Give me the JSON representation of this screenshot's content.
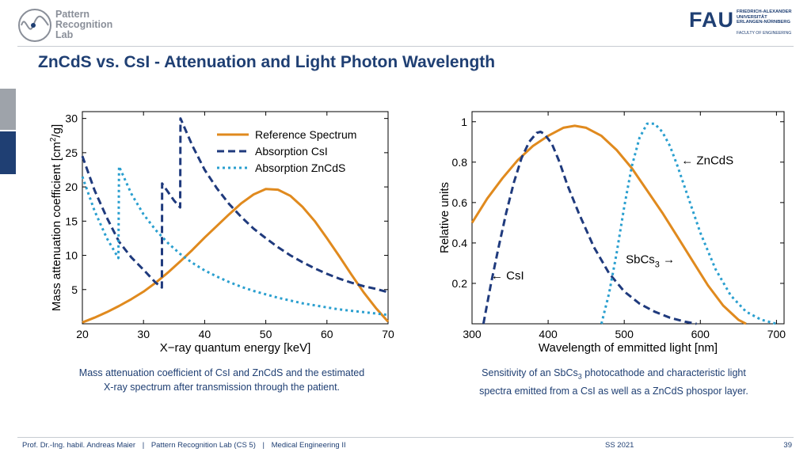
{
  "header": {
    "lab_name_line1": "Pattern",
    "lab_name_line2": "Recognition",
    "lab_name_line3": "Lab",
    "university_mark": "FAU",
    "university_line1": "FRIEDRICH-ALEXANDER",
    "university_line2": "UNIVERSITÄT",
    "university_line3": "ERLANGEN-NÜRNBERG",
    "faculty": "FACULTY OF ENGINEERING"
  },
  "slide": {
    "title": "ZnCdS vs. CsI - Attenuation and Light Photon Wavelength"
  },
  "captions": {
    "left_line1": "Mass attenuation coefficient of CsI and ZnCdS and the estimated",
    "left_line2": "X-ray spectrum after transmission through the patient.",
    "right_line1_a": "Sensitivity of an SbCs",
    "right_line1_sub": "3",
    "right_line1_b": " photocathode and characteristic light",
    "right_line2": "spectra emitted from a CsI as well as a ZnCdS phospor layer."
  },
  "footer": {
    "author": "Prof. Dr.-Ing. habil. Andreas Maier",
    "sep1": "|",
    "lab": "Pattern Recognition Lab (CS 5)",
    "sep2": "|",
    "course": "Medical Engineering II",
    "term": "SS 2021",
    "page": "39"
  },
  "colors": {
    "orange": "#e08a1e",
    "dark_blue": "#1f3a7d",
    "light_blue": "#2a9fcf",
    "brand": "#1f3f73"
  },
  "chart_data": [
    {
      "type": "line",
      "xlabel": "X−ray quantum energy [keV]",
      "ylabel_a": "Mass attenuation coefficient [cm",
      "ylabel_sup": "2",
      "ylabel_b": "/g]",
      "xlim": [
        20,
        70
      ],
      "ylim": [
        0,
        31
      ],
      "xticks": [
        20,
        30,
        40,
        50,
        60,
        70
      ],
      "yticks": [
        5,
        10,
        15,
        20,
        25,
        30
      ],
      "grid": false,
      "legend_position": "top-right",
      "series": [
        {
          "name": "Reference Spectrum",
          "style": "solid",
          "color": "#e08a1e",
          "x": [
            20,
            22,
            24,
            26,
            28,
            30,
            32,
            34,
            36,
            38,
            40,
            42,
            44,
            46,
            48,
            50,
            52,
            54,
            56,
            58,
            60,
            62,
            64,
            66,
            68,
            70
          ],
          "y": [
            0.2,
            0.9,
            1.7,
            2.6,
            3.6,
            4.7,
            6.0,
            7.5,
            9.1,
            10.8,
            12.6,
            14.3,
            16.0,
            17.6,
            18.9,
            19.7,
            19.6,
            18.7,
            17.1,
            15.0,
            12.5,
            9.9,
            7.2,
            4.6,
            2.3,
            0.3
          ]
        },
        {
          "name": "Absorption CsI",
          "style": "dashed",
          "color": "#1f3a7d",
          "x": [
            20,
            22,
            24,
            26,
            28,
            30,
            32,
            33,
            33.05,
            35,
            36,
            36.05,
            38,
            40,
            42,
            44,
            46,
            48,
            50,
            52,
            54,
            56,
            58,
            60,
            62,
            64,
            66,
            68,
            70
          ],
          "y": [
            24.5,
            19.5,
            15.5,
            12.0,
            9.7,
            7.9,
            6.0,
            5.3,
            20.5,
            18.0,
            17.0,
            30.0,
            26.0,
            22.5,
            19.8,
            17.5,
            15.6,
            13.9,
            12.5,
            11.2,
            10.0,
            9.0,
            8.1,
            7.3,
            6.6,
            6.0,
            5.5,
            5.1,
            4.6
          ]
        },
        {
          "name": "Absorption ZnCdS",
          "style": "dotted",
          "color": "#2a9fcf",
          "x": [
            20,
            22,
            24,
            25.9,
            26,
            28,
            30,
            32,
            34,
            36,
            38,
            40,
            42,
            44,
            46,
            48,
            50,
            52,
            54,
            56,
            58,
            60,
            62,
            64,
            66,
            68,
            70
          ],
          "y": [
            21.5,
            16.5,
            12.5,
            9.6,
            23.0,
            19.0,
            16.0,
            13.7,
            11.8,
            10.2,
            8.9,
            7.8,
            6.9,
            6.1,
            5.4,
            4.8,
            4.3,
            3.8,
            3.4,
            3.0,
            2.7,
            2.4,
            2.1,
            1.9,
            1.7,
            1.5,
            1.3
          ]
        }
      ]
    },
    {
      "type": "line",
      "xlabel": "Wavelength of emmitted light [nm]",
      "ylabel": "Relative units",
      "xlim": [
        300,
        710
      ],
      "ylim": [
        0,
        1.05
      ],
      "xticks": [
        300,
        400,
        500,
        600,
        700
      ],
      "yticks": [
        0.2,
        0.4,
        0.6,
        0.8,
        1
      ],
      "grid": false,
      "annotations": [
        {
          "text": "← CsI",
          "x": 325,
          "y": 0.22
        },
        {
          "text": "← ZnCdS",
          "x": 575,
          "y": 0.79
        },
        {
          "text_a": "SbCs",
          "text_sub": "3",
          "text_b": " →",
          "x": 502,
          "y": 0.3
        }
      ],
      "series": [
        {
          "name": "SbCs3",
          "style": "solid",
          "color": "#e08a1e",
          "x": [
            300,
            320,
            340,
            360,
            380,
            400,
            420,
            435,
            450,
            470,
            490,
            510,
            530,
            550,
            570,
            590,
            610,
            630,
            650,
            660
          ],
          "y": [
            0.5,
            0.62,
            0.72,
            0.81,
            0.88,
            0.93,
            0.97,
            0.98,
            0.97,
            0.93,
            0.86,
            0.77,
            0.66,
            0.55,
            0.43,
            0.31,
            0.19,
            0.09,
            0.02,
            0.0
          ]
        },
        {
          "name": "CsI",
          "style": "dashed",
          "color": "#1f3a7d",
          "x": [
            315,
            325,
            335,
            345,
            355,
            365,
            375,
            385,
            390,
            395,
            405,
            415,
            425,
            440,
            460,
            480,
            500,
            520,
            540,
            560,
            580,
            595
          ],
          "y": [
            0.0,
            0.2,
            0.38,
            0.55,
            0.7,
            0.82,
            0.9,
            0.945,
            0.95,
            0.94,
            0.89,
            0.8,
            0.69,
            0.55,
            0.38,
            0.25,
            0.16,
            0.1,
            0.06,
            0.03,
            0.01,
            0.0
          ]
        },
        {
          "name": "ZnCdS",
          "style": "dotted",
          "color": "#2a9fcf",
          "x": [
            470,
            480,
            490,
            500,
            510,
            520,
            530,
            540,
            550,
            560,
            570,
            580,
            590,
            600,
            620,
            640,
            660,
            680,
            700
          ],
          "y": [
            0.0,
            0.15,
            0.35,
            0.58,
            0.78,
            0.92,
            0.99,
            0.99,
            0.95,
            0.88,
            0.78,
            0.67,
            0.56,
            0.45,
            0.27,
            0.14,
            0.06,
            0.02,
            0.0
          ]
        }
      ]
    }
  ]
}
